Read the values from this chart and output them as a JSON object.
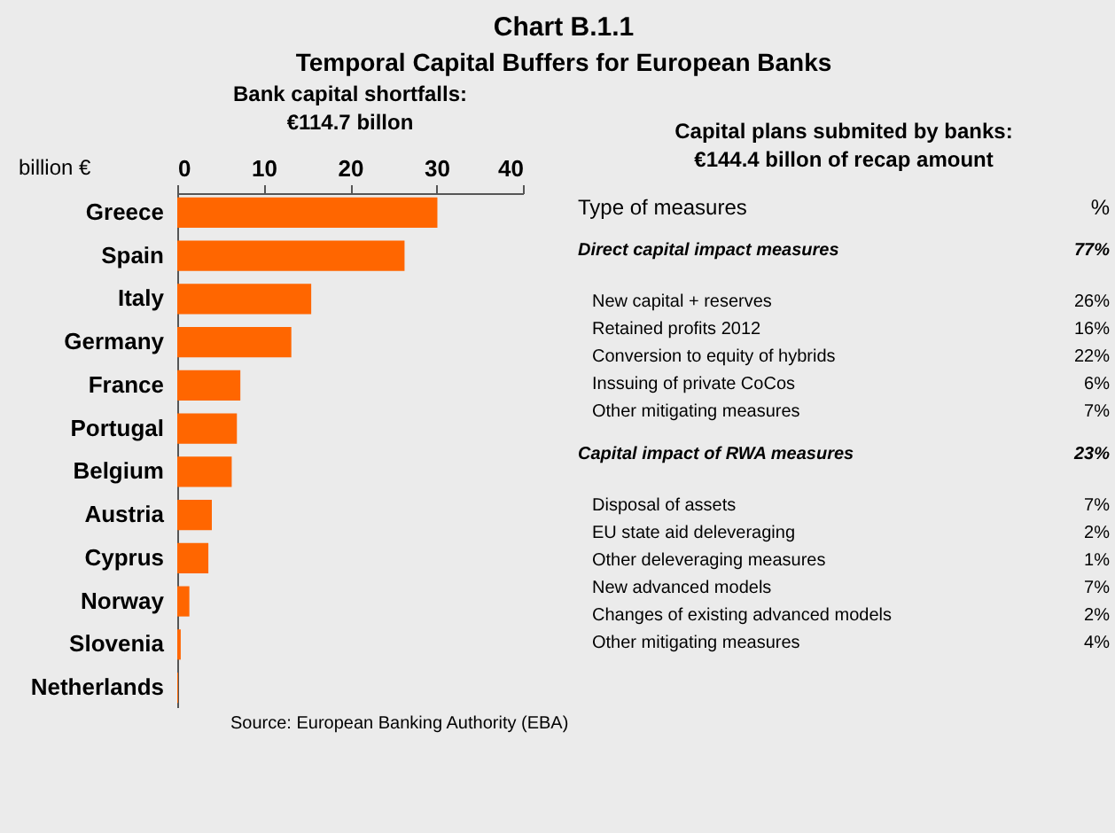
{
  "chart_data": [
    {
      "type": "bar",
      "orientation": "horizontal",
      "title": "Bank capital shortfalls:",
      "subtitle": "€114.7 billon",
      "xlabel": "billion €",
      "categories": [
        "Greece",
        "Spain",
        "Italy",
        "Germany",
        "France",
        "Portugal",
        "Belgium",
        "Austria",
        "Cyprus",
        "Norway",
        "Slovenia",
        "Netherlands"
      ],
      "values": [
        30.1,
        26.3,
        15.5,
        13.2,
        7.3,
        6.9,
        6.3,
        4.0,
        3.6,
        1.4,
        0.4,
        0.1
      ],
      "color": "#ff6600",
      "xlim": [
        0,
        40
      ],
      "xticks": [
        0,
        10,
        20,
        30,
        40
      ],
      "grid": false,
      "annotations": [
        "Chart B.1.1",
        "Temporal Capital Buffers for European Banks",
        "Source: European Banking Authority (EBA)"
      ]
    },
    {
      "type": "other",
      "title": "Capital plans submited by banks:",
      "subtitle": "€144.4 billon of recap amount",
      "xlabel": "Type of measures",
      "ylabel": "%"
    },
    {
      "type": "other",
      "xlabel": "Direct capital impact measures",
      "ylabel": "77%",
      "annotations": [
        "New capital +  reserves",
        "26%",
        "Retained profits 2012",
        "16%",
        "Conversion to equity of hybrids",
        "22%",
        "Inssuing of private CoCos",
        "6%",
        "Other mitigating measures",
        "7%"
      ]
    },
    {
      "type": "other",
      "xlabel": "Capital impact of RWA measures",
      "ylabel": "23%",
      "annotations": [
        "Disposal of assets",
        "7%",
        "EU state aid deleveraging",
        "2%",
        "Other deleveraging measures",
        "1%",
        "New advanced models",
        "7%",
        "Changes of existing advanced models",
        "2%",
        "Other mitigating measures",
        "4%"
      ]
    }
  ]
}
